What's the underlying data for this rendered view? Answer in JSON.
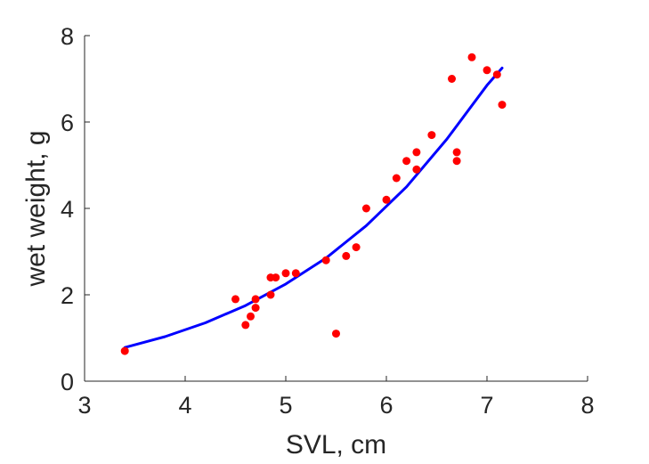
{
  "chart_data": {
    "type": "scatter",
    "title": "",
    "xlabel": "SVL, cm",
    "ylabel": "wet weight, g",
    "xlim": [
      3,
      8
    ],
    "ylim": [
      0,
      8
    ],
    "xticks": [
      "3",
      "4",
      "5",
      "6",
      "7",
      "8"
    ],
    "yticks": [
      "0",
      "2",
      "4",
      "6",
      "8"
    ],
    "grid": false,
    "legend": "none",
    "series": [
      {
        "type": "scatter",
        "color": "#ff0000",
        "points": [
          [
            3.4,
            0.7
          ],
          [
            4.5,
            1.9
          ],
          [
            4.6,
            1.3
          ],
          [
            4.65,
            1.5
          ],
          [
            4.7,
            1.7
          ],
          [
            4.7,
            1.9
          ],
          [
            4.85,
            2.0
          ],
          [
            4.85,
            2.4
          ],
          [
            4.9,
            2.4
          ],
          [
            5.0,
            2.5
          ],
          [
            5.1,
            2.5
          ],
          [
            5.4,
            2.8
          ],
          [
            5.5,
            1.1
          ],
          [
            5.6,
            2.9
          ],
          [
            5.7,
            3.1
          ],
          [
            5.8,
            4.0
          ],
          [
            6.0,
            4.2
          ],
          [
            6.1,
            4.7
          ],
          [
            6.2,
            5.1
          ],
          [
            6.3,
            5.3
          ],
          [
            6.3,
            4.9
          ],
          [
            6.45,
            5.7
          ],
          [
            6.65,
            7.0
          ],
          [
            6.7,
            5.3
          ],
          [
            6.7,
            5.1
          ],
          [
            6.85,
            7.5
          ],
          [
            7.0,
            7.2
          ],
          [
            7.1,
            7.1
          ],
          [
            7.15,
            6.4
          ]
        ]
      },
      {
        "type": "line",
        "color": "#0000ff",
        "points": [
          [
            3.4,
            0.78
          ],
          [
            3.8,
            1.03
          ],
          [
            4.2,
            1.35
          ],
          [
            4.6,
            1.75
          ],
          [
            5.0,
            2.25
          ],
          [
            5.4,
            2.85
          ],
          [
            5.8,
            3.6
          ],
          [
            6.2,
            4.5
          ],
          [
            6.6,
            5.6
          ],
          [
            7.0,
            6.85
          ],
          [
            7.15,
            7.25
          ]
        ]
      }
    ]
  }
}
